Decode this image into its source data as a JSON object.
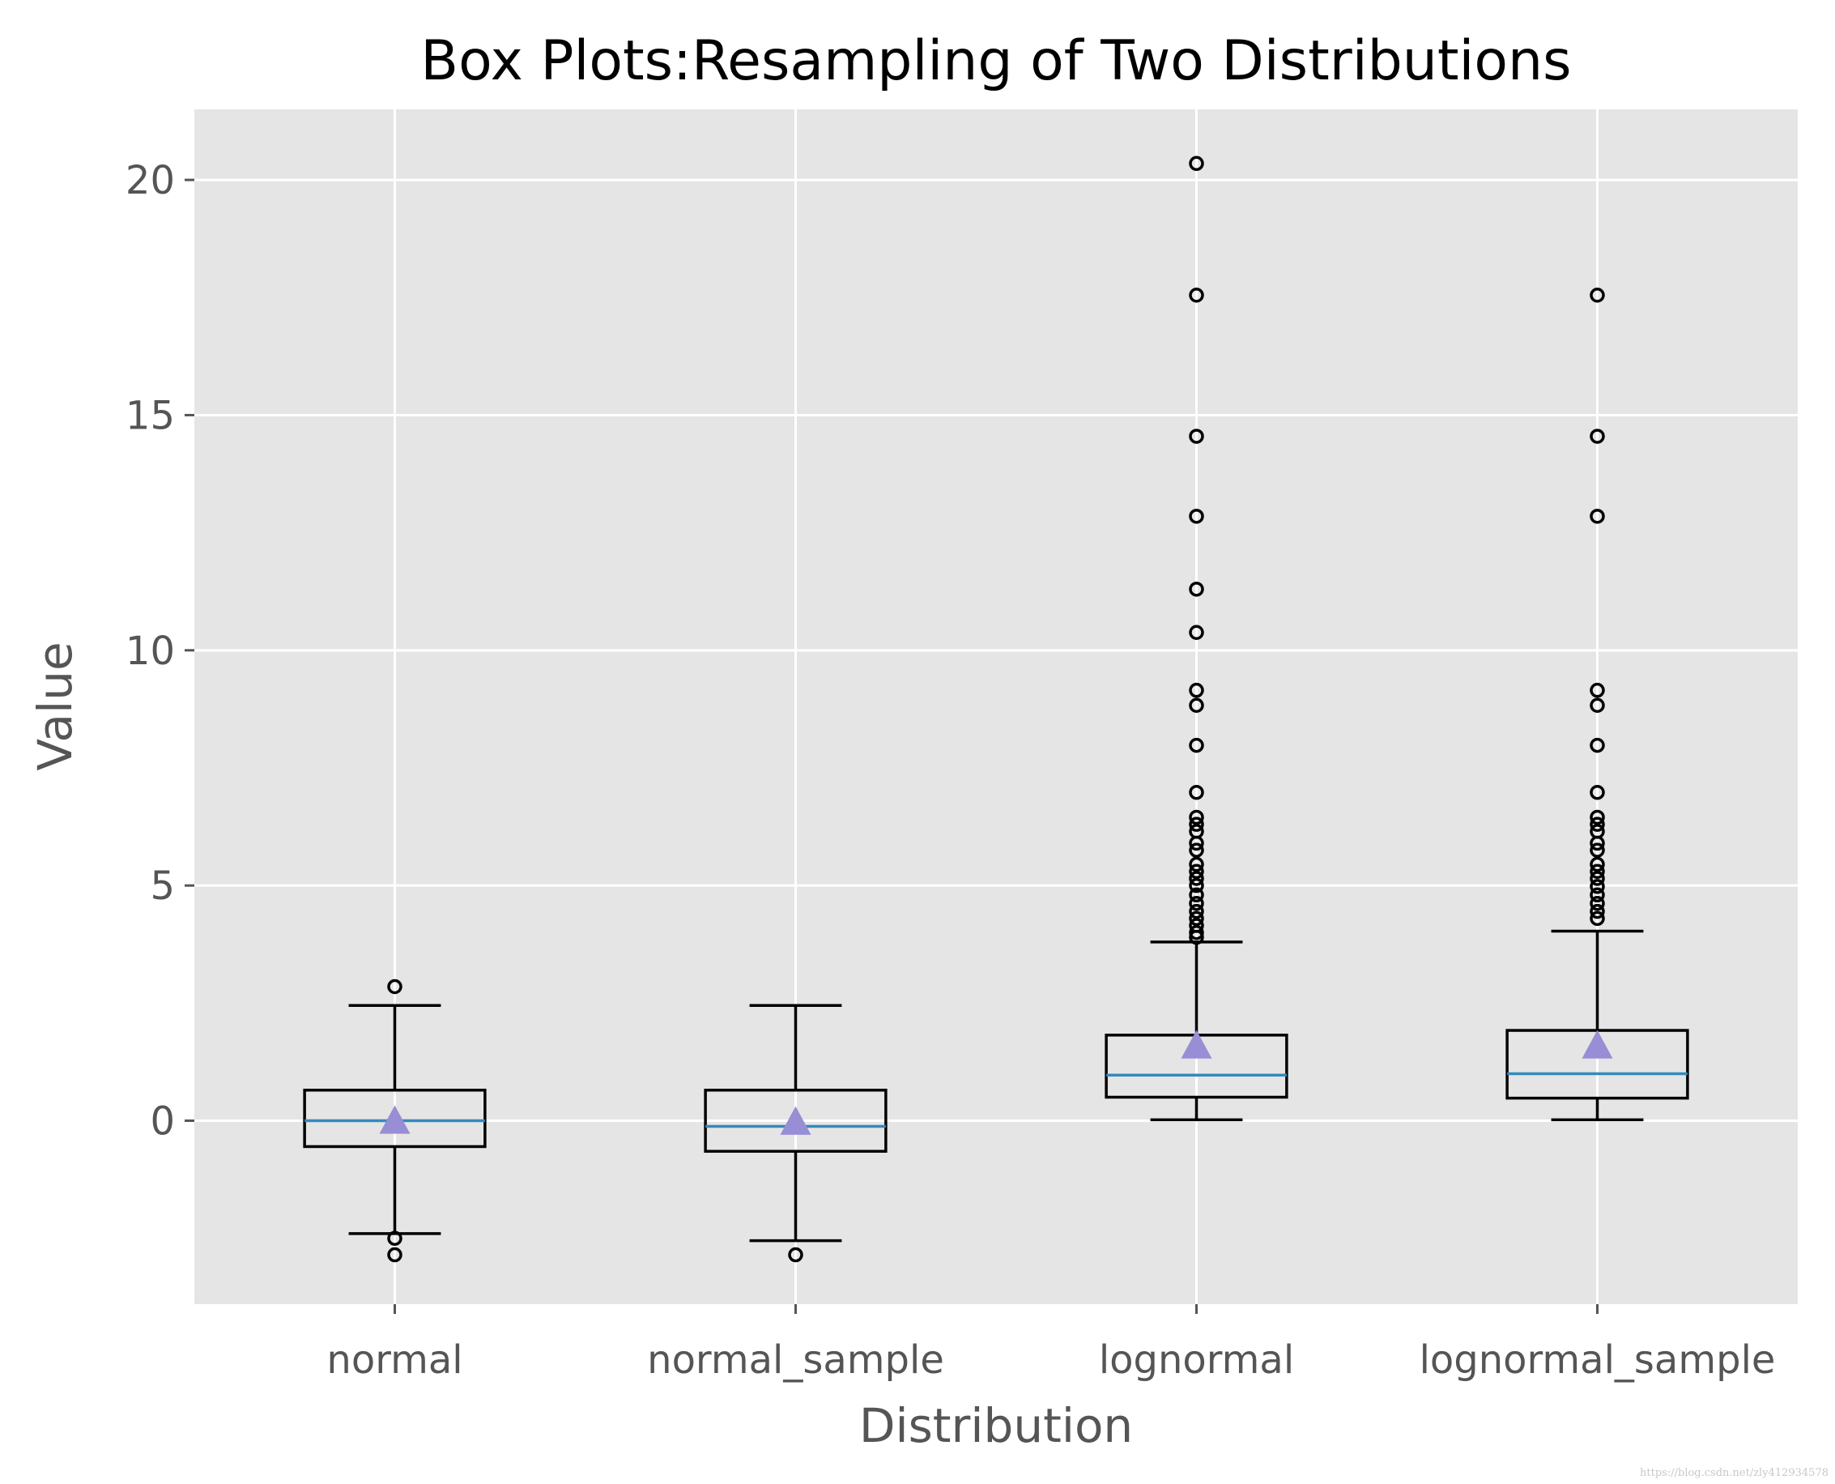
{
  "chart_data": {
    "type": "box",
    "title": "Box Plots:Resampling of Two Distributions",
    "xlabel": "Distribution",
    "ylabel": "Value",
    "ylim": [
      -3.9,
      21.5
    ],
    "yticks": [
      "0",
      "5",
      "10",
      "15",
      "20"
    ],
    "grid": true,
    "style": "ggplot",
    "colors": {
      "background": "#e5e5e5",
      "grid": "#ffffff",
      "box": "#000000",
      "median": "#348abd",
      "mean_marker": "#988ed5"
    },
    "categories": [
      "normal",
      "normal_sample",
      "lognormal",
      "lognormal_sample"
    ],
    "boxes": [
      {
        "category": "normal",
        "whislo": -2.4,
        "q1": -0.55,
        "median": 0.0,
        "q3": 0.65,
        "whishi": 2.45,
        "mean": 0.0,
        "fliers": [
          2.85,
          -2.5,
          -2.85
        ]
      },
      {
        "category": "normal_sample",
        "whislo": -2.55,
        "q1": -0.65,
        "median": -0.12,
        "q3": 0.65,
        "whishi": 2.45,
        "mean": -0.02,
        "fliers": [
          -2.85
        ]
      },
      {
        "category": "lognormal",
        "whislo": 0.02,
        "q1": 0.5,
        "median": 0.97,
        "q3": 1.82,
        "whishi": 3.8,
        "mean": 1.6,
        "fliers": [
          20.35,
          17.55,
          14.55,
          12.85,
          11.3,
          10.38,
          9.15,
          8.83,
          7.98,
          6.98,
          6.45,
          6.3,
          6.15,
          5.9,
          5.75,
          5.45,
          5.3,
          5.15,
          5.0,
          4.8,
          4.62,
          4.45,
          4.3,
          4.15,
          4.0,
          3.9
        ]
      },
      {
        "category": "lognormal_sample",
        "whislo": 0.02,
        "q1": 0.48,
        "median": 1.0,
        "q3": 1.92,
        "whishi": 4.03,
        "mean": 1.6,
        "fliers": [
          17.55,
          14.55,
          12.85,
          9.15,
          8.83,
          7.98,
          6.98,
          6.45,
          6.3,
          6.15,
          5.9,
          5.75,
          5.45,
          5.3,
          5.15,
          4.98,
          4.8,
          4.62,
          4.45,
          4.3
        ]
      }
    ]
  },
  "watermark": "https://blog.csdn.net/zly412934578"
}
